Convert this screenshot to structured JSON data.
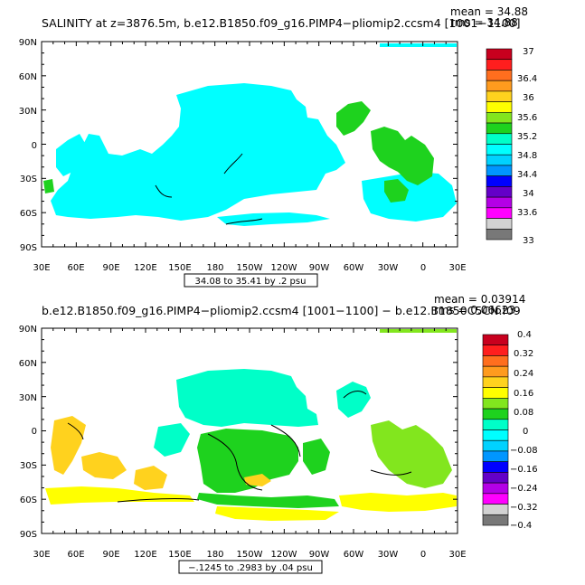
{
  "top_panel": {
    "title": "SALINITY at z=3876.5m, b.e12.B1850.f09_g16.PIMP4−pliomip2.ccsm4 [1001−1100]",
    "mean_label": "mean = 34.88",
    "rms_label": "rms = 34.88",
    "range_box": "34.08 to 35.41 by .2 psu",
    "colorbar_labels": [
      "37",
      "36.4",
      "36",
      "35.6",
      "35.2",
      "34.8",
      "34.4",
      "34",
      "33.6",
      "33"
    ],
    "colorbar_colors": [
      "#c8001e",
      "#ff1e1e",
      "#ff6e1e",
      "#ff9b1e",
      "#ffd21e",
      "#ffff00",
      "#82e61e",
      "#1ed21e",
      "#00ffc8",
      "#00ffff",
      "#00d2ff",
      "#0096ff",
      "#0000ff",
      "#6400c8",
      "#b400e6",
      "#ff00ff",
      "#d2d2d2",
      "#787878"
    ]
  },
  "bottom_panel": {
    "title": "b.e12.B1850.f09_g16.PIMP4−pliomip2.ccsm4 [1001−1100] − b.e12.B1850C5CN.f09",
    "mean_label": "mean = 0.03914",
    "rms_label": "rms = 0.06623",
    "range_box": "−.1245 to .2983 by .04 psu",
    "colorbar_labels": [
      "0.4",
      "0.32",
      "0.24",
      "0.16",
      "0.08",
      "0",
      "−0.08",
      "−0.16",
      "−0.24",
      "−0.32",
      "−0.4"
    ],
    "colorbar_colors": [
      "#c8001e",
      "#ff1e1e",
      "#ff6e1e",
      "#ff9b1e",
      "#ffd21e",
      "#ffff00",
      "#82e61e",
      "#1ed21e",
      "#00ffc8",
      "#00ffff",
      "#00d2ff",
      "#0096ff",
      "#0000ff",
      "#6400c8",
      "#b400e6",
      "#ff00ff",
      "#d2d2d2",
      "#787878"
    ]
  },
  "axes": {
    "lat_labels": [
      "90N",
      "60N",
      "30N",
      "0",
      "30S",
      "60S",
      "90S"
    ],
    "lon_labels": [
      "30E",
      "60E",
      "90E",
      "120E",
      "150E",
      "180",
      "150W",
      "120W",
      "90W",
      "60W",
      "30W",
      "0",
      "30E"
    ]
  }
}
